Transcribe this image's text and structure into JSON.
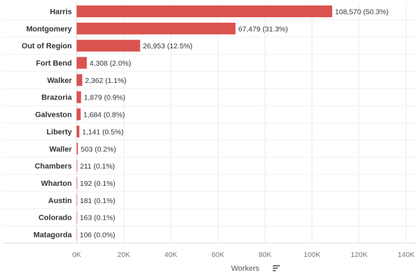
{
  "chart_data": {
    "type": "bar",
    "orientation": "horizontal",
    "categories": [
      "Harris",
      "Montgomery",
      "Out of Region",
      "Fort Bend",
      "Walker",
      "Brazoria",
      "Galveston",
      "Liberty",
      "Waller",
      "Chambers",
      "Wharton",
      "Austin",
      "Colorado",
      "Matagorda"
    ],
    "values": [
      108570,
      67479,
      26953,
      4308,
      2362,
      1879,
      1684,
      1141,
      503,
      211,
      192,
      181,
      163,
      106
    ],
    "value_labels": [
      "108,570 (50.3%)",
      "67,479 (31.3%)",
      "26,953 (12.5%)",
      "4,308 (2.0%)",
      "2,362 (1.1%)",
      "1,879 (0.9%)",
      "1,684 (0.8%)",
      "1,141 (0.5%)",
      "503 (0.2%)",
      "211 (0.1%)",
      "192 (0.1%)",
      "181 (0.1%)",
      "163 (0.1%)",
      "106 (0.0%)"
    ],
    "xlabel": "Workers",
    "ylabel": "",
    "xlim": [
      0,
      140000
    ],
    "xticks": [
      0,
      20000,
      40000,
      60000,
      80000,
      100000,
      120000,
      140000
    ],
    "xtick_labels": [
      "0K",
      "20K",
      "40K",
      "60K",
      "80K",
      "100K",
      "120K",
      "140K"
    ],
    "bar_color": "#d9534f",
    "grid": true,
    "sort_icon": "sort-descending-icon"
  }
}
